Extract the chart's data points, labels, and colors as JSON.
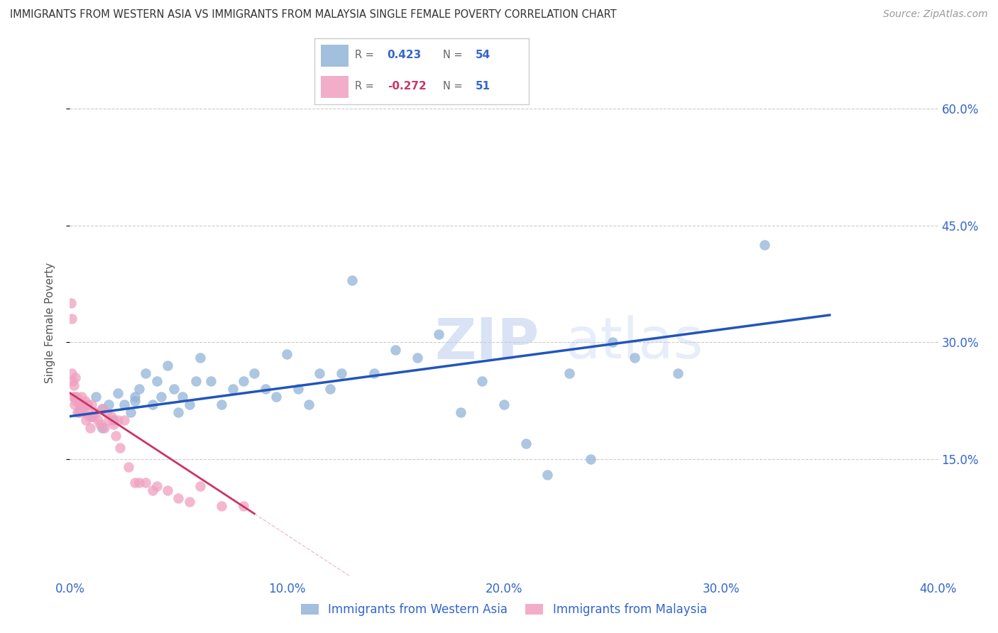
{
  "title": "IMMIGRANTS FROM WESTERN ASIA VS IMMIGRANTS FROM MALAYSIA SINGLE FEMALE POVERTY CORRELATION CHART",
  "source": "Source: ZipAtlas.com",
  "ylabel": "Single Female Poverty",
  "x_tick_labels": [
    "0.0%",
    "10.0%",
    "20.0%",
    "30.0%",
    "40.0%"
  ],
  "x_tick_values": [
    0.0,
    10.0,
    20.0,
    30.0,
    40.0
  ],
  "y_tick_labels": [
    "15.0%",
    "30.0%",
    "45.0%",
    "60.0%"
  ],
  "y_tick_values": [
    15.0,
    30.0,
    45.0,
    60.0
  ],
  "xlim": [
    0.0,
    40.0
  ],
  "ylim": [
    0.0,
    65.0
  ],
  "legend_label_blue": "Immigrants from Western Asia",
  "legend_label_pink": "Immigrants from Malaysia",
  "blue_color": "#92B4D7",
  "pink_color": "#F0A0C0",
  "blue_line_color": "#2255BB",
  "pink_line_color": "#CC3366",
  "watermark_zip": "ZIP",
  "watermark_atlas": "atlas",
  "background_color": "#FFFFFF",
  "blue_scatter_x": [
    0.4,
    0.8,
    1.0,
    1.2,
    1.5,
    1.5,
    1.8,
    2.0,
    2.2,
    2.5,
    2.8,
    3.0,
    3.0,
    3.2,
    3.5,
    3.8,
    4.0,
    4.2,
    4.5,
    4.8,
    5.0,
    5.2,
    5.5,
    5.8,
    6.0,
    6.5,
    7.0,
    7.5,
    8.0,
    8.5,
    9.0,
    9.5,
    10.0,
    10.5,
    11.0,
    11.5,
    12.0,
    12.5,
    13.0,
    14.0,
    15.0,
    16.0,
    17.0,
    18.0,
    19.0,
    20.0,
    21.0,
    22.0,
    23.0,
    24.0,
    25.0,
    26.0,
    28.0,
    32.0
  ],
  "blue_scatter_y": [
    21.0,
    22.0,
    20.5,
    23.0,
    21.5,
    19.0,
    22.0,
    20.0,
    23.5,
    22.0,
    21.0,
    23.0,
    22.5,
    24.0,
    26.0,
    22.0,
    25.0,
    23.0,
    27.0,
    24.0,
    21.0,
    23.0,
    22.0,
    25.0,
    28.0,
    25.0,
    22.0,
    24.0,
    25.0,
    26.0,
    24.0,
    23.0,
    28.5,
    24.0,
    22.0,
    26.0,
    24.0,
    26.0,
    38.0,
    26.0,
    29.0,
    28.0,
    31.0,
    21.0,
    25.0,
    22.0,
    17.0,
    13.0,
    26.0,
    15.0,
    30.0,
    28.0,
    26.0,
    42.5
  ],
  "pink_scatter_x": [
    0.05,
    0.08,
    0.1,
    0.12,
    0.15,
    0.18,
    0.2,
    0.22,
    0.25,
    0.28,
    0.3,
    0.35,
    0.4,
    0.45,
    0.5,
    0.55,
    0.6,
    0.65,
    0.7,
    0.75,
    0.8,
    0.85,
    0.9,
    0.95,
    1.0,
    1.1,
    1.2,
    1.3,
    1.4,
    1.5,
    1.6,
    1.7,
    1.8,
    1.9,
    2.0,
    2.1,
    2.2,
    2.3,
    2.5,
    2.7,
    3.0,
    3.2,
    3.5,
    3.8,
    4.0,
    4.5,
    5.0,
    5.5,
    6.0,
    7.0,
    8.0
  ],
  "pink_scatter_y": [
    35.0,
    33.0,
    26.0,
    25.0,
    23.0,
    24.5,
    22.0,
    23.0,
    25.5,
    22.5,
    23.0,
    21.0,
    22.5,
    22.0,
    21.5,
    23.0,
    21.0,
    22.0,
    22.5,
    20.0,
    22.0,
    21.0,
    20.5,
    19.0,
    22.0,
    20.5,
    21.0,
    20.0,
    19.5,
    21.5,
    19.0,
    21.0,
    20.0,
    20.5,
    19.5,
    18.0,
    20.0,
    16.5,
    20.0,
    14.0,
    12.0,
    12.0,
    12.0,
    11.0,
    11.5,
    11.0,
    10.0,
    9.5,
    11.5,
    9.0,
    9.0
  ],
  "blue_trend_x": [
    0.0,
    35.0
  ],
  "blue_trend_y_start": 20.5,
  "blue_trend_y_end": 33.5,
  "pink_trend_x_start": 0.0,
  "pink_trend_x_end": 8.5,
  "pink_trend_y_start": 23.5,
  "pink_trend_y_end": 8.0
}
